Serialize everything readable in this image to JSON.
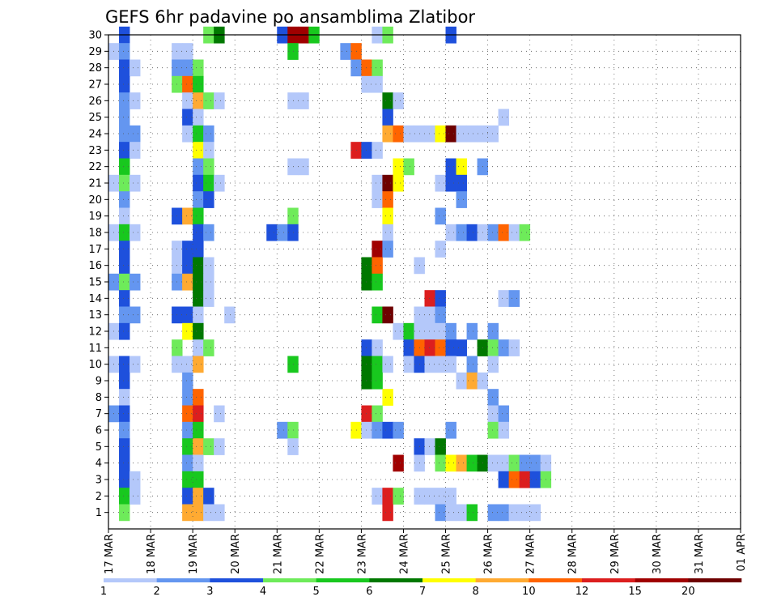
{
  "chart_data": {
    "type": "heatmap",
    "title": "GEFS 6hr padavine po ansamblima Zlatibor",
    "xlabel": "",
    "ylabel": "",
    "x_tick_labels": [
      "17 MAR",
      "18 MAR",
      "19 MAR",
      "20 MAR",
      "21 MAR",
      "22 MAR",
      "23 MAR",
      "24 MAR",
      "25 MAR",
      "26 MAR",
      "27 MAR",
      "28 MAR",
      "29 MAR",
      "30 MAR",
      "31 MAR",
      "01 APR"
    ],
    "y_tick_labels": [
      "1",
      "2",
      "3",
      "4",
      "5",
      "6",
      "7",
      "8",
      "9",
      "10",
      "11",
      "12",
      "13",
      "14",
      "15",
      "16",
      "17",
      "18",
      "19",
      "20",
      "21",
      "22",
      "23",
      "24",
      "25",
      "26",
      "27",
      "28",
      "29",
      "30"
    ],
    "members": 30,
    "steps_per_day": 4,
    "grid": true,
    "colorbar": {
      "labels": [
        "1",
        "2",
        "3",
        "4",
        "5",
        "6",
        "7",
        "8",
        "10",
        "12",
        "15",
        "20"
      ],
      "colors": [
        "#b4c8fa",
        "#6496f0",
        "#1e50dc",
        "#6eeb5a",
        "#18c81e",
        "#007800",
        "#ffff00",
        "#ffaa32",
        "#ff6400",
        "#dc1e1e",
        "#a00000",
        "#6e0000"
      ]
    },
    "cells": [
      [
        30,
        1,
        3
      ],
      [
        30,
        9,
        4
      ],
      [
        30,
        10,
        6
      ],
      [
        30,
        16,
        3
      ],
      [
        30,
        17,
        11
      ],
      [
        30,
        18,
        11
      ],
      [
        30,
        19,
        5
      ],
      [
        30,
        25,
        1
      ],
      [
        30,
        26,
        4
      ],
      [
        30,
        32,
        3
      ],
      [
        29,
        0,
        1
      ],
      [
        29,
        1,
        2
      ],
      [
        29,
        6,
        1
      ],
      [
        29,
        7,
        1
      ],
      [
        29,
        17,
        5
      ],
      [
        29,
        22,
        2
      ],
      [
        29,
        23,
        9
      ],
      [
        28,
        1,
        3
      ],
      [
        28,
        2,
        1
      ],
      [
        28,
        6,
        2
      ],
      [
        28,
        7,
        2
      ],
      [
        28,
        8,
        4
      ],
      [
        28,
        23,
        2
      ],
      [
        28,
        24,
        9
      ],
      [
        28,
        25,
        4
      ],
      [
        27,
        1,
        3
      ],
      [
        27,
        6,
        4
      ],
      [
        27,
        7,
        9
      ],
      [
        27,
        8,
        5
      ],
      [
        27,
        24,
        1
      ],
      [
        27,
        25,
        1
      ],
      [
        26,
        1,
        2
      ],
      [
        26,
        2,
        1
      ],
      [
        26,
        7,
        1
      ],
      [
        26,
        8,
        8
      ],
      [
        26,
        9,
        4
      ],
      [
        26,
        10,
        1
      ],
      [
        26,
        17,
        1
      ],
      [
        26,
        18,
        1
      ],
      [
        26,
        26,
        6
      ],
      [
        26,
        27,
        1
      ],
      [
        25,
        1,
        2
      ],
      [
        25,
        7,
        3
      ],
      [
        25,
        8,
        1
      ],
      [
        25,
        26,
        3
      ],
      [
        25,
        37,
        1
      ],
      [
        24,
        1,
        2
      ],
      [
        24,
        2,
        2
      ],
      [
        24,
        7,
        1
      ],
      [
        24,
        8,
        5
      ],
      [
        24,
        9,
        2
      ],
      [
        24,
        26,
        8
      ],
      [
        24,
        27,
        9
      ],
      [
        24,
        28,
        1
      ],
      [
        24,
        29,
        1
      ],
      [
        24,
        30,
        1
      ],
      [
        24,
        31,
        7
      ],
      [
        24,
        32,
        12
      ],
      [
        24,
        33,
        1
      ],
      [
        24,
        34,
        1
      ],
      [
        24,
        35,
        1
      ],
      [
        24,
        36,
        1
      ],
      [
        23,
        1,
        3
      ],
      [
        23,
        2,
        1
      ],
      [
        23,
        8,
        7
      ],
      [
        23,
        9,
        1
      ],
      [
        23,
        23,
        10
      ],
      [
        23,
        24,
        3
      ],
      [
        23,
        25,
        1
      ],
      [
        22,
        1,
        5
      ],
      [
        22,
        8,
        2
      ],
      [
        22,
        9,
        4
      ],
      [
        22,
        17,
        1
      ],
      [
        22,
        18,
        1
      ],
      [
        22,
        27,
        7
      ],
      [
        22,
        28,
        4
      ],
      [
        22,
        32,
        3
      ],
      [
        22,
        33,
        7
      ],
      [
        22,
        35,
        2
      ],
      [
        21,
        0,
        1
      ],
      [
        21,
        1,
        4
      ],
      [
        21,
        2,
        1
      ],
      [
        21,
        8,
        3
      ],
      [
        21,
        9,
        5
      ],
      [
        21,
        10,
        1
      ],
      [
        21,
        25,
        1
      ],
      [
        21,
        26,
        12
      ],
      [
        21,
        27,
        7
      ],
      [
        21,
        31,
        1
      ],
      [
        21,
        32,
        3
      ],
      [
        21,
        33,
        3
      ],
      [
        20,
        1,
        2
      ],
      [
        20,
        8,
        2
      ],
      [
        20,
        9,
        3
      ],
      [
        20,
        25,
        1
      ],
      [
        20,
        26,
        9
      ],
      [
        20,
        33,
        2
      ],
      [
        19,
        1,
        1
      ],
      [
        19,
        6,
        3
      ],
      [
        19,
        7,
        8
      ],
      [
        19,
        8,
        5
      ],
      [
        19,
        17,
        4
      ],
      [
        19,
        26,
        7
      ],
      [
        19,
        31,
        2
      ],
      [
        18,
        0,
        1
      ],
      [
        18,
        1,
        5
      ],
      [
        18,
        2,
        1
      ],
      [
        18,
        8,
        3
      ],
      [
        18,
        9,
        2
      ],
      [
        18,
        15,
        3
      ],
      [
        18,
        16,
        2
      ],
      [
        18,
        17,
        3
      ],
      [
        18,
        26,
        1
      ],
      [
        18,
        32,
        1
      ],
      [
        18,
        33,
        2
      ],
      [
        18,
        34,
        3
      ],
      [
        18,
        35,
        1
      ],
      [
        18,
        36,
        2
      ],
      [
        18,
        37,
        9
      ],
      [
        18,
        38,
        1
      ],
      [
        18,
        39,
        4
      ],
      [
        17,
        1,
        3
      ],
      [
        17,
        6,
        1
      ],
      [
        17,
        7,
        3
      ],
      [
        17,
        8,
        3
      ],
      [
        17,
        25,
        11
      ],
      [
        17,
        26,
        2
      ],
      [
        17,
        31,
        1
      ],
      [
        16,
        1,
        3
      ],
      [
        16,
        6,
        1
      ],
      [
        16,
        7,
        3
      ],
      [
        16,
        8,
        6
      ],
      [
        16,
        9,
        1
      ],
      [
        16,
        24,
        6
      ],
      [
        16,
        25,
        9
      ],
      [
        16,
        29,
        1
      ],
      [
        15,
        0,
        2
      ],
      [
        15,
        1,
        4
      ],
      [
        15,
        2,
        2
      ],
      [
        15,
        6,
        2
      ],
      [
        15,
        7,
        8
      ],
      [
        15,
        8,
        6
      ],
      [
        15,
        9,
        1
      ],
      [
        15,
        24,
        6
      ],
      [
        15,
        25,
        5
      ],
      [
        14,
        1,
        3
      ],
      [
        14,
        8,
        6
      ],
      [
        14,
        9,
        1
      ],
      [
        14,
        30,
        10
      ],
      [
        14,
        31,
        3
      ],
      [
        14,
        37,
        1
      ],
      [
        14,
        38,
        2
      ],
      [
        13,
        1,
        2
      ],
      [
        13,
        2,
        2
      ],
      [
        13,
        6,
        3
      ],
      [
        13,
        7,
        3
      ],
      [
        13,
        8,
        1
      ],
      [
        13,
        11,
        1
      ],
      [
        13,
        25,
        5
      ],
      [
        13,
        26,
        12
      ],
      [
        13,
        29,
        1
      ],
      [
        13,
        30,
        1
      ],
      [
        13,
        31,
        2
      ],
      [
        12,
        0,
        1
      ],
      [
        12,
        1,
        3
      ],
      [
        12,
        7,
        7
      ],
      [
        12,
        8,
        6
      ],
      [
        12,
        27,
        1
      ],
      [
        12,
        28,
        5
      ],
      [
        12,
        29,
        1
      ],
      [
        12,
        30,
        1
      ],
      [
        12,
        31,
        1
      ],
      [
        12,
        32,
        2
      ],
      [
        12,
        34,
        2
      ],
      [
        12,
        36,
        2
      ],
      [
        11,
        6,
        4
      ],
      [
        11,
        8,
        1
      ],
      [
        11,
        9,
        4
      ],
      [
        11,
        24,
        3
      ],
      [
        11,
        25,
        1
      ],
      [
        11,
        28,
        3
      ],
      [
        11,
        29,
        9
      ],
      [
        11,
        30,
        10
      ],
      [
        11,
        31,
        9
      ],
      [
        11,
        32,
        3
      ],
      [
        11,
        33,
        3
      ],
      [
        11,
        35,
        6
      ],
      [
        11,
        36,
        4
      ],
      [
        11,
        37,
        2
      ],
      [
        11,
        38,
        1
      ],
      [
        10,
        0,
        1
      ],
      [
        10,
        1,
        3
      ],
      [
        10,
        2,
        1
      ],
      [
        10,
        6,
        1
      ],
      [
        10,
        7,
        1
      ],
      [
        10,
        8,
        8
      ],
      [
        10,
        17,
        5
      ],
      [
        10,
        24,
        6
      ],
      [
        10,
        25,
        5
      ],
      [
        10,
        26,
        1
      ],
      [
        10,
        28,
        1
      ],
      [
        10,
        29,
        3
      ],
      [
        10,
        30,
        1
      ],
      [
        10,
        31,
        1
      ],
      [
        10,
        32,
        1
      ],
      [
        10,
        34,
        2
      ],
      [
        10,
        36,
        1
      ],
      [
        9,
        1,
        3
      ],
      [
        9,
        7,
        2
      ],
      [
        9,
        24,
        6
      ],
      [
        9,
        25,
        5
      ],
      [
        9,
        33,
        1
      ],
      [
        9,
        34,
        8
      ],
      [
        9,
        35,
        1
      ],
      [
        8,
        1,
        1
      ],
      [
        8,
        7,
        2
      ],
      [
        8,
        8,
        9
      ],
      [
        8,
        26,
        7
      ],
      [
        8,
        36,
        2
      ],
      [
        7,
        0,
        2
      ],
      [
        7,
        1,
        3
      ],
      [
        7,
        7,
        9
      ],
      [
        7,
        8,
        10
      ],
      [
        7,
        10,
        1
      ],
      [
        7,
        24,
        10
      ],
      [
        7,
        25,
        4
      ],
      [
        7,
        36,
        1
      ],
      [
        7,
        37,
        2
      ],
      [
        6,
        1,
        2
      ],
      [
        6,
        7,
        2
      ],
      [
        6,
        8,
        5
      ],
      [
        6,
        16,
        2
      ],
      [
        6,
        17,
        4
      ],
      [
        6,
        23,
        7
      ],
      [
        6,
        24,
        1
      ],
      [
        6,
        25,
        2
      ],
      [
        6,
        26,
        3
      ],
      [
        6,
        27,
        2
      ],
      [
        6,
        32,
        2
      ],
      [
        6,
        36,
        4
      ],
      [
        6,
        37,
        1
      ],
      [
        5,
        1,
        3
      ],
      [
        5,
        7,
        5
      ],
      [
        5,
        8,
        8
      ],
      [
        5,
        9,
        4
      ],
      [
        5,
        10,
        1
      ],
      [
        5,
        17,
        1
      ],
      [
        5,
        29,
        3
      ],
      [
        5,
        30,
        1
      ],
      [
        5,
        31,
        6
      ],
      [
        4,
        1,
        3
      ],
      [
        4,
        7,
        2
      ],
      [
        4,
        8,
        1
      ],
      [
        4,
        27,
        11
      ],
      [
        4,
        29,
        1
      ],
      [
        4,
        31,
        4
      ],
      [
        4,
        32,
        7
      ],
      [
        4,
        33,
        8
      ],
      [
        4,
        34,
        5
      ],
      [
        4,
        35,
        6
      ],
      [
        4,
        36,
        1
      ],
      [
        4,
        37,
        1
      ],
      [
        4,
        38,
        4
      ],
      [
        4,
        39,
        2
      ],
      [
        4,
        40,
        2
      ],
      [
        4,
        41,
        1
      ],
      [
        3,
        1,
        3
      ],
      [
        3,
        2,
        1
      ],
      [
        3,
        7,
        5
      ],
      [
        3,
        8,
        5
      ],
      [
        3,
        37,
        3
      ],
      [
        3,
        38,
        9
      ],
      [
        3,
        39,
        10
      ],
      [
        3,
        40,
        3
      ],
      [
        3,
        41,
        4
      ],
      [
        2,
        1,
        5
      ],
      [
        2,
        2,
        1
      ],
      [
        2,
        7,
        3
      ],
      [
        2,
        8,
        8
      ],
      [
        2,
        9,
        3
      ],
      [
        2,
        25,
        1
      ],
      [
        2,
        26,
        10
      ],
      [
        2,
        27,
        4
      ],
      [
        2,
        29,
        1
      ],
      [
        2,
        30,
        1
      ],
      [
        2,
        31,
        1
      ],
      [
        2,
        32,
        1
      ],
      [
        1,
        1,
        4
      ],
      [
        1,
        7,
        8
      ],
      [
        1,
        8,
        8
      ],
      [
        1,
        9,
        1
      ],
      [
        1,
        10,
        1
      ],
      [
        1,
        26,
        10
      ],
      [
        1,
        31,
        2
      ],
      [
        1,
        32,
        1
      ],
      [
        1,
        33,
        1
      ],
      [
        1,
        34,
        5
      ],
      [
        1,
        36,
        2
      ],
      [
        1,
        37,
        2
      ],
      [
        1,
        38,
        1
      ],
      [
        1,
        39,
        1
      ],
      [
        1,
        40,
        1
      ]
    ]
  }
}
